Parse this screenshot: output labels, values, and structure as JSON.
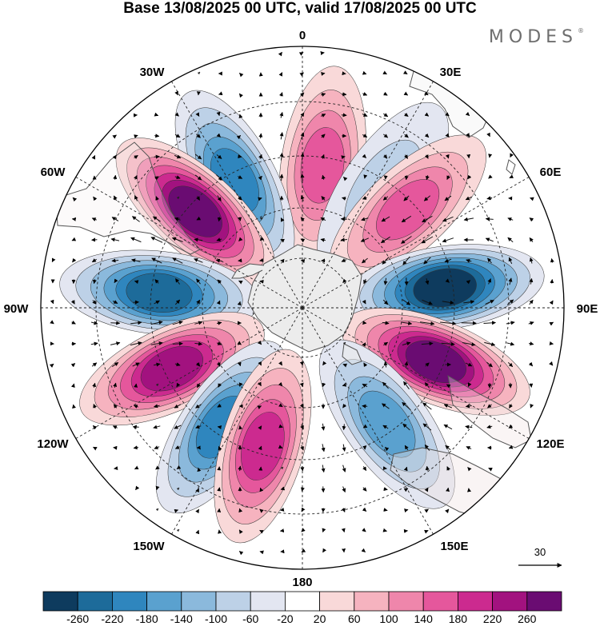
{
  "title": "Base 13/08/2025 00 UTC, valid 17/08/2025 00 UTC",
  "logo": "MODES",
  "logo_mark": "®",
  "longitude_labels": [
    {
      "id": "lon-0",
      "text": "0"
    },
    {
      "id": "lon-30e",
      "text": "30E"
    },
    {
      "id": "lon-60e",
      "text": "60E"
    },
    {
      "id": "lon-90e",
      "text": "90E"
    },
    {
      "id": "lon-120e",
      "text": "120E"
    },
    {
      "id": "lon-150e",
      "text": "150E"
    },
    {
      "id": "lon-180",
      "text": "180"
    },
    {
      "id": "lon-150w",
      "text": "150W"
    },
    {
      "id": "lon-120w",
      "text": "120W"
    },
    {
      "id": "lon-90w",
      "text": "90W"
    },
    {
      "id": "lon-60w",
      "text": "60W"
    },
    {
      "id": "lon-30w",
      "text": "30W"
    }
  ],
  "vector_reference": {
    "value": "30"
  },
  "colorbar": {
    "colors": [
      "#0e3b5e",
      "#1d6b9a",
      "#2f86be",
      "#5aa1cf",
      "#8bb9dc",
      "#bdd1e7",
      "#e3e6f1",
      "#ffffff",
      "#f9d9d9",
      "#f6b3bf",
      "#ef86ab",
      "#e5579c",
      "#cc2a8f",
      "#a2127f",
      "#6a0c72"
    ],
    "labels": [
      "-260",
      "-220",
      "-180",
      "-140",
      "-100",
      "-60",
      "-20",
      "20",
      "60",
      "100",
      "140",
      "180",
      "220",
      "260"
    ]
  },
  "chart_data": {
    "type": "polar-stereographic map",
    "projection": "south polar stereographic",
    "title": "Base 13/08/2025 00 UTC, valid 17/08/2025 00 UTC",
    "longitude_ticks": [
      "0",
      "30E",
      "60E",
      "90E",
      "120E",
      "150E",
      "180",
      "150W",
      "120W",
      "90W",
      "60W",
      "30W"
    ],
    "shaded_field_levels": [
      -260,
      -220,
      -180,
      -140,
      -100,
      -60,
      -20,
      20,
      60,
      100,
      140,
      180,
      220,
      260
    ],
    "anomaly_centers": [
      {
        "sign": "positive",
        "bearing_deg": 8,
        "strength": 140
      },
      {
        "sign": "negative",
        "bearing_deg": 34,
        "strength": -60
      },
      {
        "sign": "positive",
        "bearing_deg": 47,
        "strength": 140
      },
      {
        "sign": "negative",
        "bearing_deg": -28,
        "strength": -180
      },
      {
        "sign": "positive",
        "bearing_deg": -48,
        "strength": 260
      },
      {
        "sign": "negative",
        "bearing_deg": 82,
        "strength": -260
      },
      {
        "sign": "negative",
        "bearing_deg": -84,
        "strength": -220
      },
      {
        "sign": "positive",
        "bearing_deg": 112,
        "strength": 240
      },
      {
        "sign": "positive",
        "bearing_deg": -115,
        "strength": 220
      },
      {
        "sign": "negative",
        "bearing_deg": -146,
        "strength": -180
      },
      {
        "sign": "positive",
        "bearing_deg": -164,
        "strength": 160
      },
      {
        "sign": "negative",
        "bearing_deg": 144,
        "strength": -140
      }
    ],
    "vector_reference_magnitude": 30
  }
}
